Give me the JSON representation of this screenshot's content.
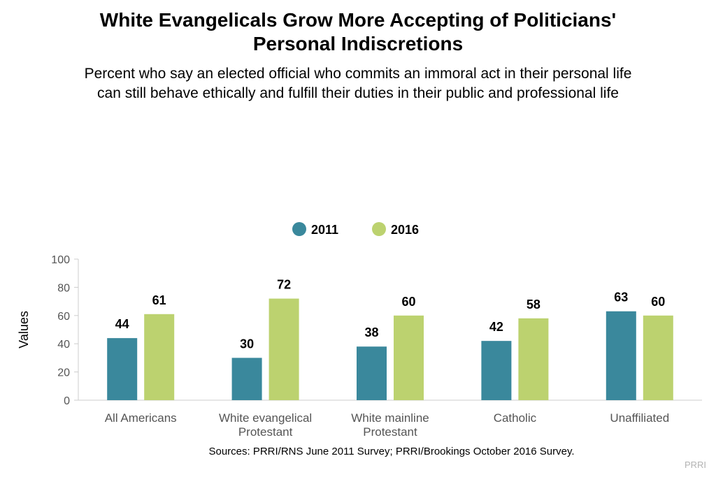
{
  "title_lines": [
    "White Evangelicals Grow More Accepting of Politicians'",
    "Personal Indiscretions"
  ],
  "subtitle_lines": [
    "Percent who say an elected official who commits an immoral act in their personal life",
    "can still behave ethically and fulfill their duties in their public and professional life"
  ],
  "source": "Sources: PRRI/RNS June 2011 Survey; PRRI/Brookings October 2016 Survey.",
  "brand": "PRRI",
  "chart_data": {
    "type": "bar",
    "categories": [
      [
        "All Americans"
      ],
      [
        "White evangelical",
        "Protestant"
      ],
      [
        "White mainline",
        "Protestant"
      ],
      [
        "Catholic"
      ],
      [
        "Unaffiliated"
      ]
    ],
    "series": [
      {
        "name": "2011",
        "color": "#3a889c",
        "values": [
          44,
          30,
          38,
          42,
          63
        ]
      },
      {
        "name": "2016",
        "color": "#bcd26f",
        "values": [
          61,
          72,
          60,
          58,
          60
        ]
      }
    ],
    "ylabel": "Values",
    "ylim": [
      0,
      100
    ],
    "yticks": [
      0,
      20,
      40,
      60,
      80,
      100
    ],
    "grid": false,
    "data_labels": true,
    "legend_position": "top-center"
  }
}
